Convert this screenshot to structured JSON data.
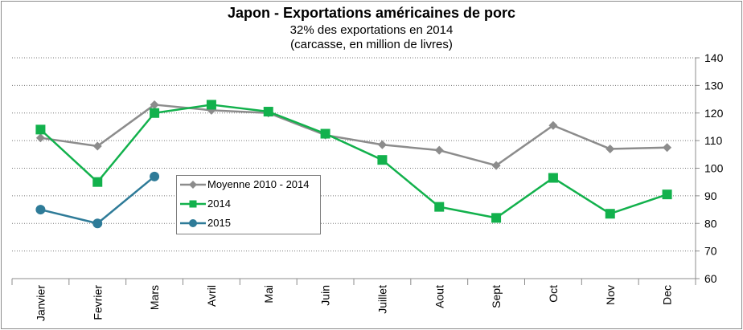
{
  "chart_data": {
    "type": "line",
    "title": "Japon - Exportations américaines de porc",
    "subtitle": "32% des exportations en 2014",
    "subtitle2": "(carcasse, en million de livres)",
    "categories": [
      "Janvier",
      "Fevrier",
      "Mars",
      "Avril",
      "Mai",
      "Juin",
      "Juillet",
      "Aout",
      "Sept",
      "Oct",
      "Nov",
      "Dec"
    ],
    "ylim": [
      60,
      140
    ],
    "yticks": [
      60,
      70,
      80,
      90,
      100,
      110,
      120,
      130,
      140
    ],
    "y_axis_side": "right",
    "grid": "horizontal dotted",
    "legend_position": "center-left",
    "series": [
      {
        "name": "Moyenne 2010 - 2014",
        "color": "#8c8c8c",
        "marker": "diamond",
        "values": [
          111,
          108,
          123,
          121,
          120,
          112,
          108.5,
          106.5,
          101,
          115.5,
          107,
          107.5
        ]
      },
      {
        "name": "2014",
        "color": "#12b14c",
        "marker": "square",
        "values": [
          114,
          95,
          120,
          123,
          120.5,
          112.5,
          103,
          86,
          82,
          96.5,
          83.5,
          90.5
        ]
      },
      {
        "name": "2015",
        "color": "#2e7b98",
        "marker": "circle",
        "values": [
          85,
          80,
          97,
          null,
          null,
          null,
          null,
          null,
          null,
          null,
          null,
          null
        ]
      }
    ]
  }
}
